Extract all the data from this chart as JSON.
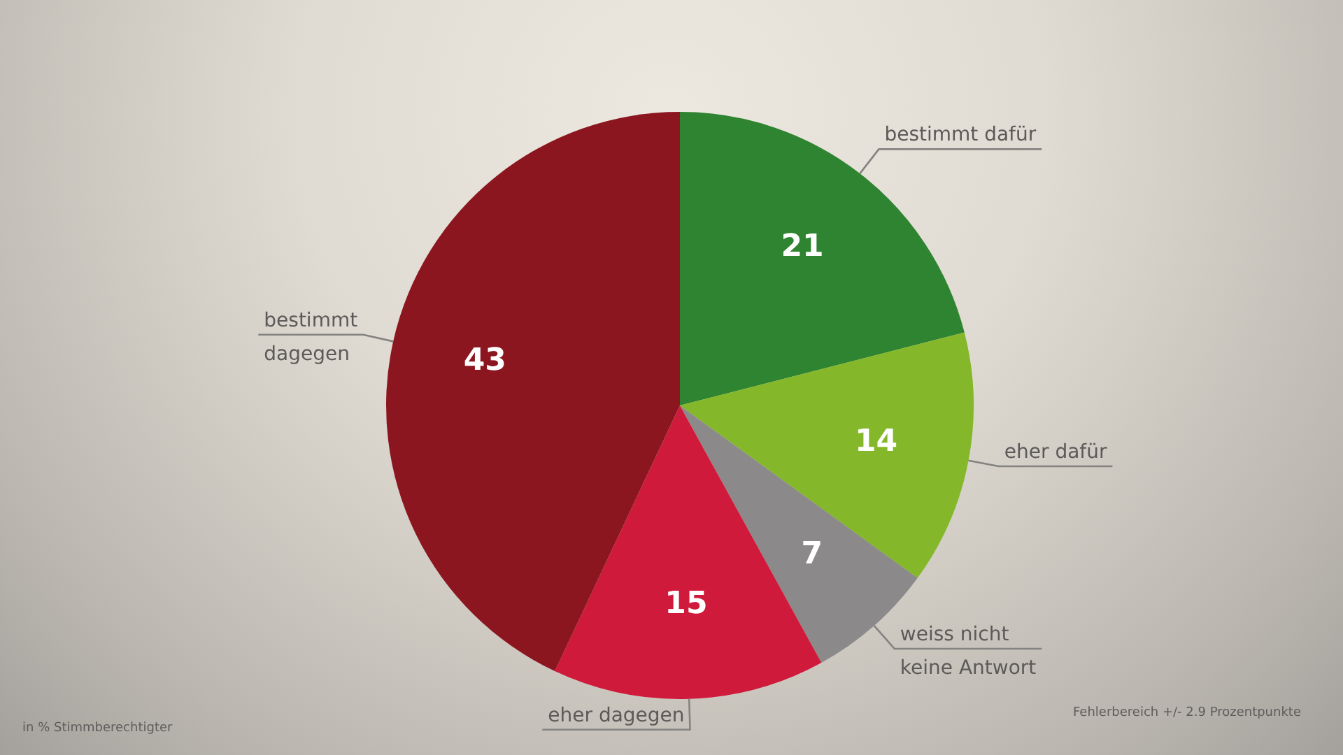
{
  "chart_data": {
    "type": "pie",
    "categories": [
      "bestimmt dafür",
      "eher dafür",
      "weiss nicht\nkeine Antwort",
      "eher dagegen",
      "bestimmt\ndagegen"
    ],
    "values": [
      21,
      14,
      7,
      15,
      43
    ],
    "colors": [
      "#2e8430",
      "#84b82a",
      "#8b8989",
      "#d01a3b",
      "#8c1620"
    ],
    "data_labels": true,
    "annotations": [
      "in % Stimmberechtigter",
      "Fehlerbereich +/- 2.9 Prozentpunkte"
    ]
  }
}
